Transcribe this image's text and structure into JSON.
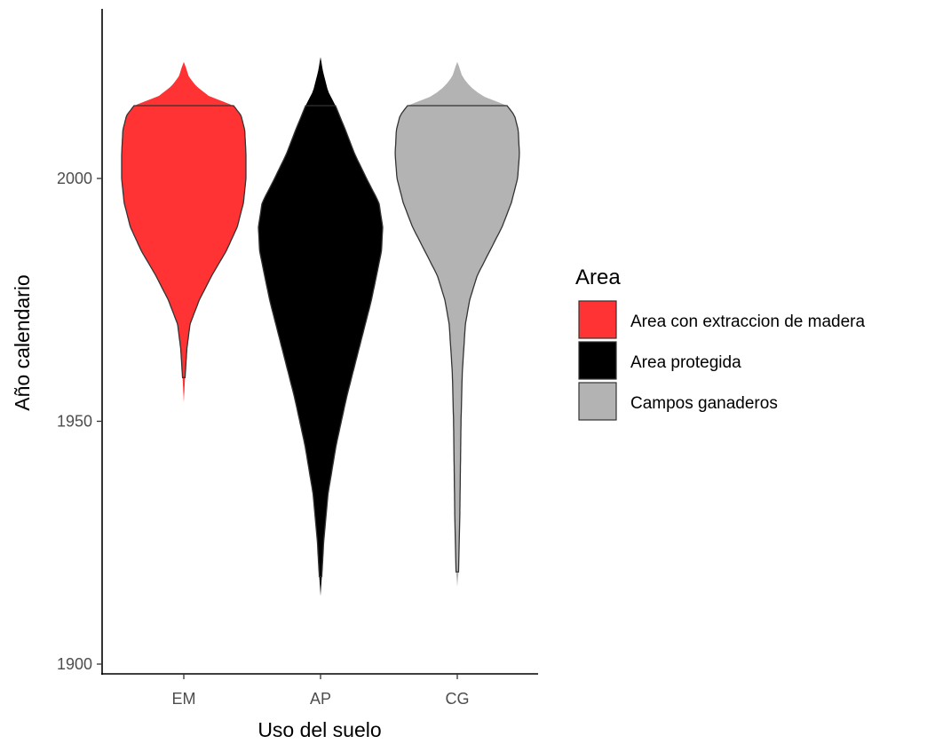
{
  "chart_data": {
    "type": "violin",
    "xlabel": "Uso del suelo",
    "ylabel": "Año calendario",
    "categories": [
      "EM",
      "AP",
      "CG"
    ],
    "yticks": [
      1900,
      1950,
      2000
    ],
    "ylim": [
      1900,
      2028
    ],
    "grid": false,
    "legend": {
      "title": "Area",
      "position": "right",
      "entries": [
        {
          "label": "Area con extraccion de madera",
          "color": "#ff3333"
        },
        {
          "label": "Area protegida",
          "color": "#000000"
        },
        {
          "label": "Campos ganaderos",
          "color": "#b3b3b3"
        }
      ]
    },
    "series": [
      {
        "category": "EM",
        "color": "#ff3333",
        "min": 1954,
        "max": 2024,
        "outline_min": 1959,
        "outline_max": 2015,
        "profile": [
          [
            1954,
            0.0
          ],
          [
            1959,
            0.02
          ],
          [
            1965,
            0.05
          ],
          [
            1970,
            0.1
          ],
          [
            1975,
            0.25
          ],
          [
            1980,
            0.45
          ],
          [
            1985,
            0.68
          ],
          [
            1990,
            0.86
          ],
          [
            1995,
            0.96
          ],
          [
            2000,
            1.0
          ],
          [
            2005,
            1.0
          ],
          [
            2010,
            0.98
          ],
          [
            2013,
            0.92
          ],
          [
            2015,
            0.8
          ],
          [
            2017,
            0.4
          ],
          [
            2019,
            0.2
          ],
          [
            2021,
            0.08
          ],
          [
            2023,
            0.03
          ],
          [
            2024,
            0.0
          ]
        ]
      },
      {
        "category": "AP",
        "color": "#000000",
        "min": 1914,
        "max": 2025,
        "outline_min": 1918,
        "outline_max": 2015,
        "profile": [
          [
            1914,
            0.0
          ],
          [
            1918,
            0.02
          ],
          [
            1925,
            0.05
          ],
          [
            1935,
            0.12
          ],
          [
            1945,
            0.25
          ],
          [
            1955,
            0.42
          ],
          [
            1965,
            0.62
          ],
          [
            1975,
            0.82
          ],
          [
            1985,
            0.98
          ],
          [
            1990,
            1.0
          ],
          [
            1995,
            0.94
          ],
          [
            2000,
            0.74
          ],
          [
            2005,
            0.55
          ],
          [
            2010,
            0.4
          ],
          [
            2015,
            0.24
          ],
          [
            2018,
            0.12
          ],
          [
            2022,
            0.04
          ],
          [
            2025,
            0.0
          ]
        ]
      },
      {
        "category": "CG",
        "color": "#b3b3b3",
        "min": 1916,
        "max": 2024,
        "outline_min": 1919,
        "outline_max": 2015,
        "profile": [
          [
            1916,
            0.0
          ],
          [
            1919,
            0.02
          ],
          [
            1930,
            0.04
          ],
          [
            1940,
            0.05
          ],
          [
            1950,
            0.06
          ],
          [
            1960,
            0.08
          ],
          [
            1970,
            0.13
          ],
          [
            1975,
            0.2
          ],
          [
            1980,
            0.32
          ],
          [
            1985,
            0.52
          ],
          [
            1990,
            0.72
          ],
          [
            1995,
            0.87
          ],
          [
            2000,
            0.97
          ],
          [
            2005,
            1.0
          ],
          [
            2010,
            0.98
          ],
          [
            2013,
            0.92
          ],
          [
            2015,
            0.8
          ],
          [
            2017,
            0.4
          ],
          [
            2019,
            0.2
          ],
          [
            2021,
            0.08
          ],
          [
            2023,
            0.03
          ],
          [
            2024,
            0.0
          ]
        ]
      }
    ]
  }
}
